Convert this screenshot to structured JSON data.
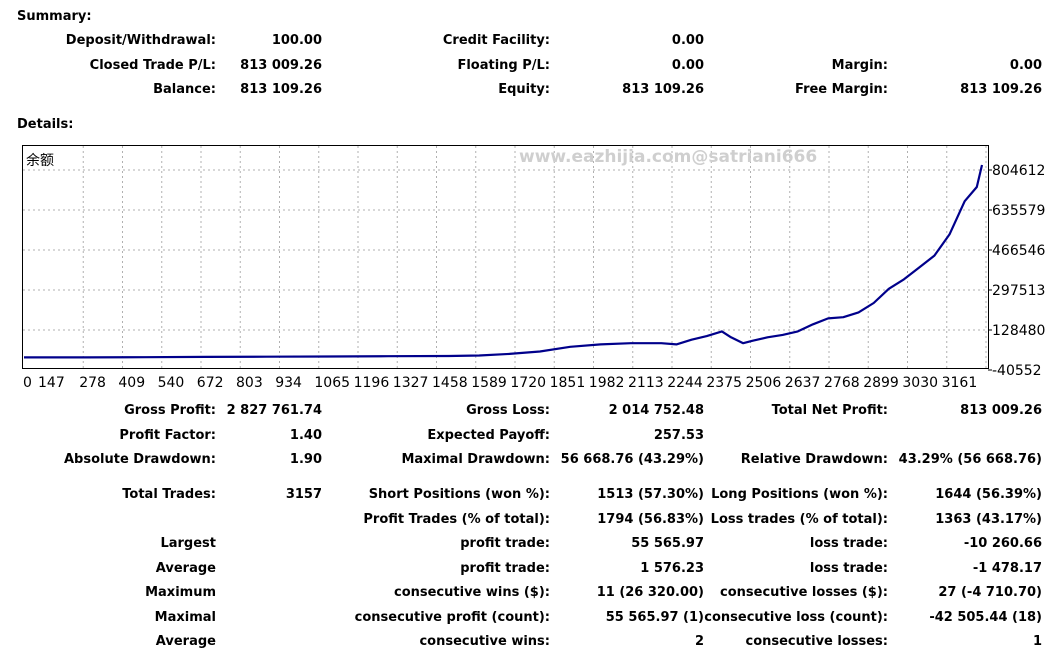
{
  "summary": {
    "title": "Summary:",
    "rows": [
      [
        {
          "label": "Deposit/Withdrawal:",
          "value": "100.00"
        },
        {
          "label": "Credit Facility:",
          "value": "0.00"
        },
        {
          "label": "",
          "value": ""
        }
      ],
      [
        {
          "label": "Closed Trade P/L:",
          "value": "813 009.26"
        },
        {
          "label": "Floating P/L:",
          "value": "0.00"
        },
        {
          "label": "Margin:",
          "value": "0.00"
        }
      ],
      [
        {
          "label": "Balance:",
          "value": "813 109.26"
        },
        {
          "label": "Equity:",
          "value": "813 109.26"
        },
        {
          "label": "Free Margin:",
          "value": "813 109.26"
        }
      ]
    ]
  },
  "details": {
    "title": "Details:",
    "rows": [
      [
        {
          "label": "Gross Profit:",
          "value": "2 827 761.74"
        },
        {
          "label": "Gross Loss:",
          "value": "2 014 752.48"
        },
        {
          "label": "Total Net Profit:",
          "value": "813 009.26"
        }
      ],
      [
        {
          "label": "Profit Factor:",
          "value": "1.40"
        },
        {
          "label": "Expected Payoff:",
          "value": "257.53"
        },
        {
          "label": "",
          "value": ""
        }
      ],
      [
        {
          "label": "Absolute Drawdown:",
          "value": "1.90"
        },
        {
          "label": "Maximal Drawdown:",
          "value": "56 668.76 (43.29%)"
        },
        {
          "label": "Relative Drawdown:",
          "value": "43.29% (56 668.76)"
        }
      ],
      [
        {
          "label": "Total Trades:",
          "value": "3157"
        },
        {
          "label": "Short Positions (won %):",
          "value": "1513 (57.30%)"
        },
        {
          "label": "Long Positions (won %):",
          "value": "1644 (56.39%)"
        }
      ],
      [
        {
          "label": "",
          "value": ""
        },
        {
          "label": "Profit Trades (% of total):",
          "value": "1794 (56.83%)"
        },
        {
          "label": "Loss trades (% of total):",
          "value": "1363 (43.17%)"
        }
      ],
      [
        {
          "label": "Largest",
          "value": ""
        },
        {
          "label": "profit trade:",
          "value": "55 565.97"
        },
        {
          "label": "loss trade:",
          "value": "-10 260.66"
        }
      ],
      [
        {
          "label": "Average",
          "value": ""
        },
        {
          "label": "profit trade:",
          "value": "1 576.23"
        },
        {
          "label": "loss trade:",
          "value": "-1 478.17"
        }
      ],
      [
        {
          "label": "Maximum",
          "value": ""
        },
        {
          "label": "consecutive wins ($):",
          "value": "11 (26 320.00)"
        },
        {
          "label": "consecutive losses ($):",
          "value": "27 (-4 710.70)"
        }
      ],
      [
        {
          "label": "Maximal",
          "value": ""
        },
        {
          "label": "consecutive profit (count):",
          "value": "55 565.97 (1)"
        },
        {
          "label": "consecutive loss (count):",
          "value": "-42 505.44 (18)"
        }
      ],
      [
        {
          "label": "Average",
          "value": ""
        },
        {
          "label": "consecutive wins:",
          "value": "2"
        },
        {
          "label": "consecutive losses:",
          "value": "1"
        }
      ]
    ]
  },
  "chart_data": {
    "type": "line",
    "title": "余额",
    "watermark": "www.eazhijia.com@satriani666",
    "xlabel": "",
    "ylabel": "",
    "x_ticks": [
      "0",
      "147",
      "278",
      "409",
      "540",
      "672",
      "803",
      "934",
      "1065",
      "1196",
      "1327",
      "1458",
      "1589",
      "1720",
      "1851",
      "1982",
      "2113",
      "2244",
      "2375",
      "2506",
      "2637",
      "2768",
      "2899",
      "3030",
      "3161"
    ],
    "y_ticks": [
      "804612",
      "635579",
      "466546",
      "297513",
      "128480",
      "-40552"
    ],
    "xlim": [
      0,
      3157
    ],
    "ylim": [
      -40552,
      804612
    ],
    "grid": true,
    "series_color": "#00008b",
    "x": [
      0,
      200,
      400,
      600,
      800,
      1000,
      1200,
      1400,
      1500,
      1600,
      1700,
      1800,
      1900,
      2000,
      2100,
      2150,
      2200,
      2250,
      2300,
      2330,
      2370,
      2400,
      2450,
      2500,
      2550,
      2600,
      2650,
      2700,
      2750,
      2800,
      2850,
      2900,
      2950,
      3000,
      3050,
      3100,
      3140,
      3157
    ],
    "y": [
      100,
      150,
      1000,
      2000,
      3000,
      4000,
      5000,
      6000,
      8000,
      15000,
      25000,
      45000,
      55000,
      60000,
      60000,
      55000,
      75000,
      90000,
      110000,
      85000,
      60000,
      70000,
      85000,
      95000,
      110000,
      140000,
      165000,
      170000,
      190000,
      230000,
      290000,
      330000,
      380000,
      430000,
      520000,
      660000,
      720000,
      813109
    ]
  }
}
